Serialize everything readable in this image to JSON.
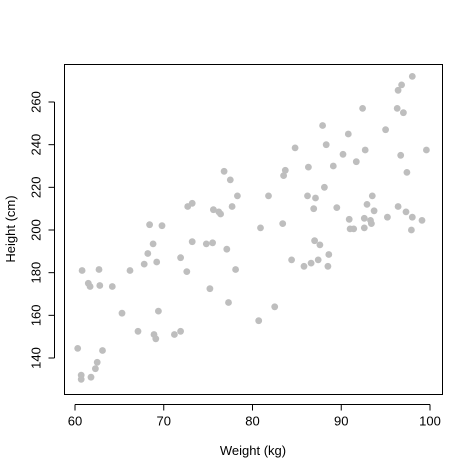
{
  "chart_data": {
    "type": "scatter",
    "title": "",
    "xlabel": "Weight (kg)",
    "ylabel": "Height (cm)",
    "xlim": [
      60,
      100
    ],
    "ylim": [
      130,
      272
    ],
    "xticks": [
      60,
      70,
      80,
      90,
      100
    ],
    "yticks": [
      140,
      160,
      180,
      200,
      220,
      240,
      260
    ],
    "grid": false,
    "legend": "none",
    "point_color": "#bebebe",
    "points": [
      [
        60.3,
        144.5
      ],
      [
        60.7,
        132
      ],
      [
        60.7,
        130
      ],
      [
        60.8,
        181
      ],
      [
        61.5,
        175
      ],
      [
        61.7,
        173.5
      ],
      [
        61.8,
        131
      ],
      [
        62.3,
        135
      ],
      [
        62.5,
        138
      ],
      [
        62.7,
        181.5
      ],
      [
        62.8,
        174
      ],
      [
        63.1,
        143.5
      ],
      [
        64.2,
        173.5
      ],
      [
        65.3,
        161
      ],
      [
        66.2,
        181
      ],
      [
        67.1,
        152.5
      ],
      [
        67.8,
        184
      ],
      [
        68.2,
        189
      ],
      [
        68.4,
        202.5
      ],
      [
        68.8,
        193.5
      ],
      [
        68.9,
        151
      ],
      [
        69.1,
        149
      ],
      [
        69.2,
        185
      ],
      [
        69.4,
        162
      ],
      [
        69.8,
        202
      ],
      [
        71.2,
        151
      ],
      [
        71.9,
        152.5
      ],
      [
        71.9,
        187
      ],
      [
        72.6,
        180.5
      ],
      [
        72.7,
        211
      ],
      [
        73.2,
        212.5
      ],
      [
        73.2,
        194.5
      ],
      [
        74.8,
        193.5
      ],
      [
        75.2,
        172.5
      ],
      [
        75.5,
        194
      ],
      [
        75.6,
        209.5
      ],
      [
        76.2,
        208.5
      ],
      [
        76.4,
        207.5
      ],
      [
        76.8,
        227.5
      ],
      [
        77.1,
        191
      ],
      [
        77.3,
        166
      ],
      [
        77.5,
        223.5
      ],
      [
        77.7,
        211
      ],
      [
        78.1,
        181.5
      ],
      [
        78.3,
        216
      ],
      [
        80.7,
        157.5
      ],
      [
        80.9,
        201
      ],
      [
        81.8,
        216
      ],
      [
        82.5,
        164
      ],
      [
        83.4,
        203
      ],
      [
        83.5,
        225.5
      ],
      [
        83.7,
        228
      ],
      [
        84.4,
        186
      ],
      [
        84.8,
        238.5
      ],
      [
        85.8,
        183
      ],
      [
        86.2,
        216
      ],
      [
        86.3,
        229.5
      ],
      [
        86.6,
        184.5
      ],
      [
        86.9,
        210
      ],
      [
        87.0,
        195
      ],
      [
        87.1,
        215
      ],
      [
        87.4,
        186
      ],
      [
        87.6,
        193
      ],
      [
        87.9,
        249
      ],
      [
        88.1,
        220
      ],
      [
        88.3,
        240
      ],
      [
        88.5,
        183
      ],
      [
        88.6,
        188.5
      ],
      [
        89.1,
        230
      ],
      [
        89.5,
        210.5
      ],
      [
        90.2,
        235.5
      ],
      [
        90.8,
        245
      ],
      [
        90.9,
        205
      ],
      [
        91.0,
        200.5
      ],
      [
        91.4,
        200.5
      ],
      [
        91.7,
        232
      ],
      [
        92.4,
        257
      ],
      [
        92.6,
        205.5
      ],
      [
        92.6,
        201
      ],
      [
        92.7,
        237.5
      ],
      [
        92.9,
        212
      ],
      [
        93.3,
        204.5
      ],
      [
        93.4,
        203
      ],
      [
        93.5,
        216
      ],
      [
        93.7,
        209
      ],
      [
        95.0,
        247
      ],
      [
        95.2,
        206
      ],
      [
        96.3,
        257
      ],
      [
        96.4,
        211
      ],
      [
        96.4,
        265.5
      ],
      [
        96.7,
        235
      ],
      [
        96.8,
        268
      ],
      [
        97.0,
        255
      ],
      [
        97.3,
        208.5
      ],
      [
        97.4,
        227
      ],
      [
        97.9,
        200
      ],
      [
        98.0,
        272
      ],
      [
        98.0,
        206
      ],
      [
        99.1,
        204.5
      ],
      [
        99.6,
        237.5
      ]
    ]
  }
}
